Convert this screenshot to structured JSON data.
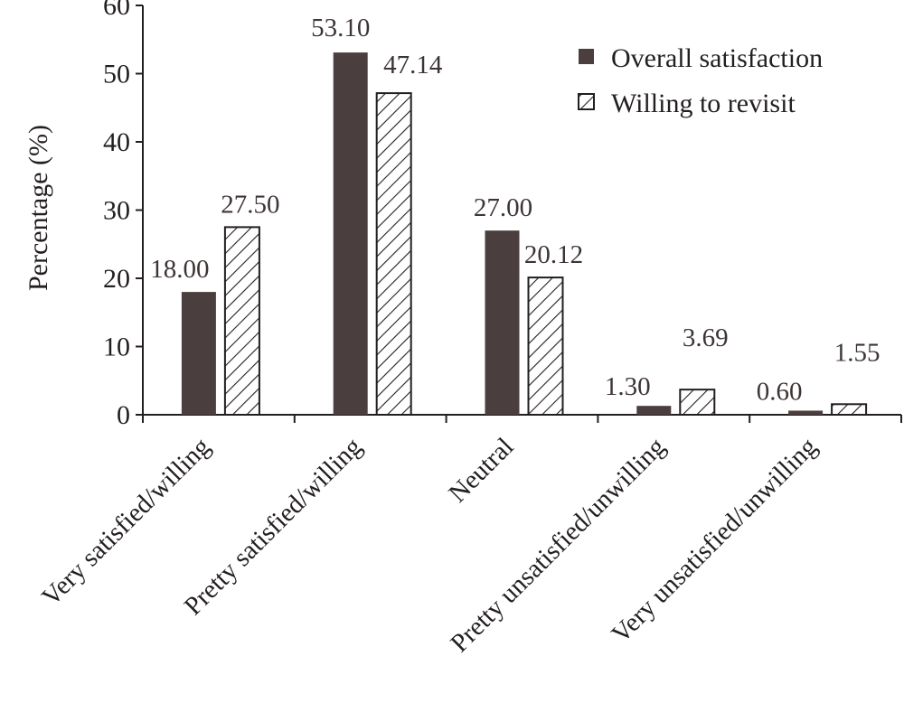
{
  "chart_data": {
    "type": "bar",
    "categories": [
      "Very satisfied/willing",
      "Pretty satisfied/willing",
      "Neutral",
      "Pretty unsatisfied/unwilling",
      "Very unsatisfied/unwilling"
    ],
    "series": [
      {
        "name": "Overall satisfaction",
        "values": [
          18.0,
          53.1,
          27.0,
          1.3,
          0.6
        ],
        "labels": [
          "18.00",
          "53.10",
          "27.00",
          "1.30",
          "0.60"
        ],
        "color": "#4a3f3e",
        "fill": "solid"
      },
      {
        "name": "Willing to revisit",
        "values": [
          27.5,
          47.14,
          20.12,
          3.69,
          1.55
        ],
        "labels": [
          "27.50",
          "47.14",
          "20.12",
          "3.69",
          "1.55"
        ],
        "color": "#231f20",
        "fill": "diagonal-hatch"
      }
    ],
    "title": "",
    "xlabel": "",
    "ylabel": "Percentage (%)",
    "ylim": [
      0,
      60
    ],
    "yticks": [
      "0",
      "10",
      "20",
      "30",
      "40",
      "50",
      "60"
    ],
    "grid": false,
    "legend": "top-right"
  }
}
